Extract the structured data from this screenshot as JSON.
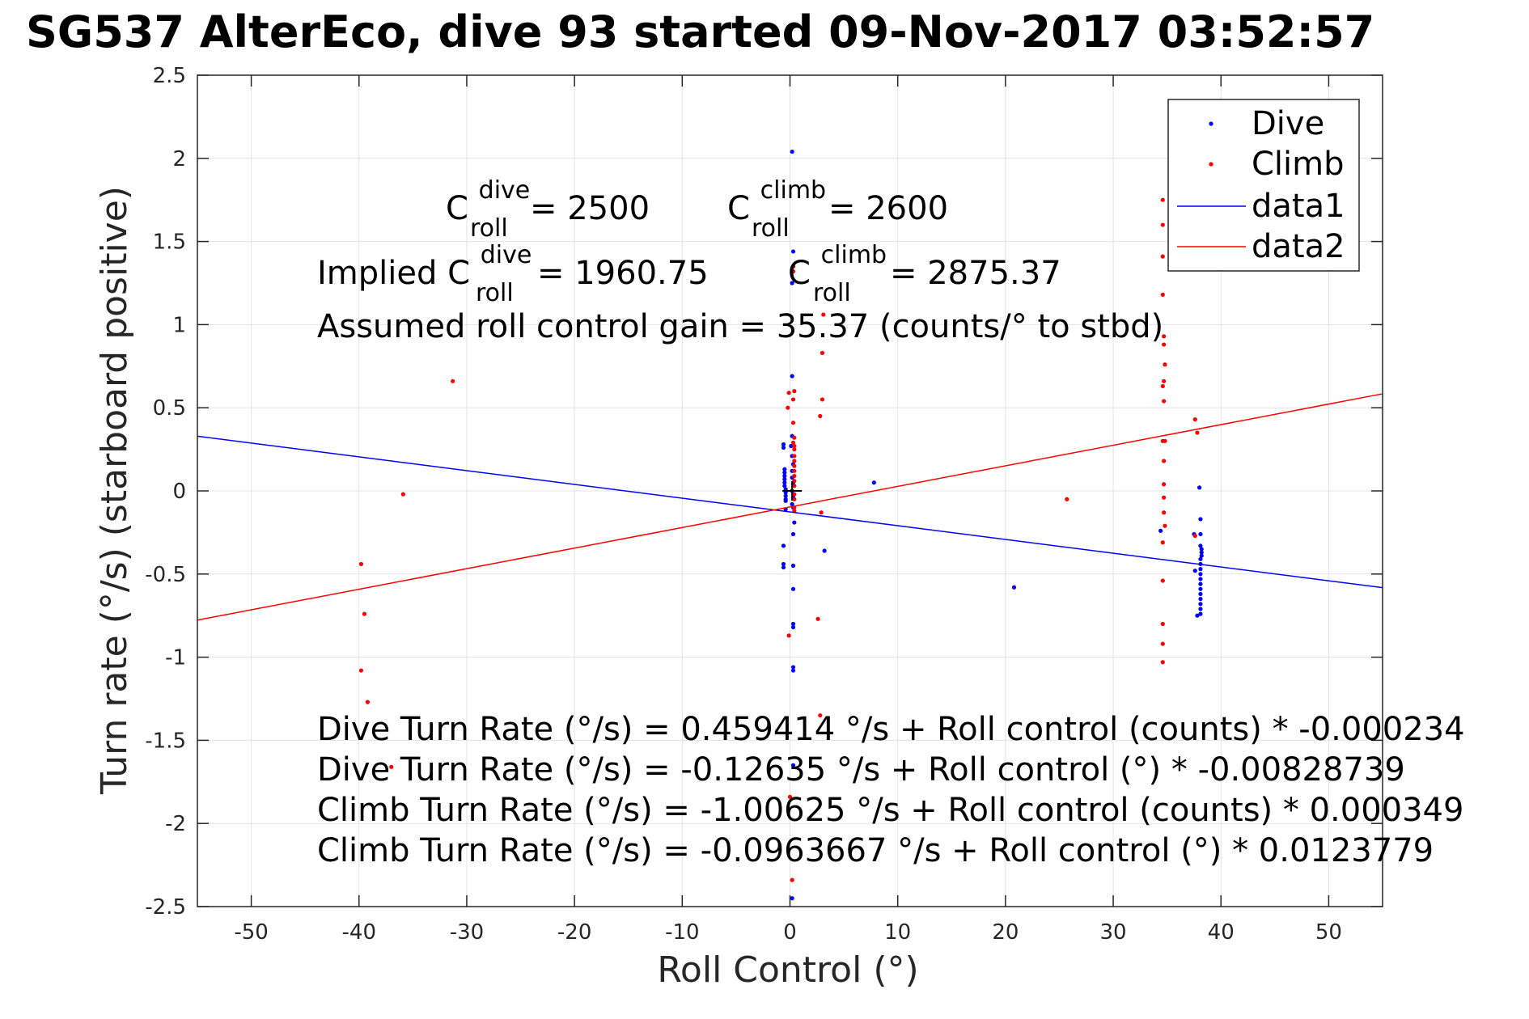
{
  "chart_data": {
    "type": "scatter",
    "title": "SG537 AlterEco, dive 93 started 09-Nov-2017 03:52:57",
    "xlabel": "Roll Control (°)",
    "ylabel": "Turn rate (°/s) (starboard positive)",
    "xlim": [
      -55,
      55
    ],
    "ylim": [
      -2.5,
      2.5
    ],
    "xticks": [
      -50,
      -40,
      -30,
      -20,
      -10,
      0,
      10,
      20,
      30,
      40,
      50
    ],
    "yticks": [
      -2.5,
      -2,
      -1.5,
      -1,
      -0.5,
      0,
      0.5,
      1,
      1.5,
      2,
      2.5
    ],
    "xtick_labels": [
      "-50",
      "-40",
      "-30",
      "-20",
      "-10",
      "0",
      "10",
      "20",
      "30",
      "40",
      "50"
    ],
    "ytick_labels": [
      "-2.5",
      "-2",
      "-1.5",
      "-1",
      "-0.5",
      "0",
      "0.5",
      "1",
      "1.5",
      "2",
      "2.5"
    ],
    "grid": true,
    "legend_position": "top-right",
    "colors": {
      "dive": "#0000ff",
      "climb": "#ff0000",
      "axis": "#262626",
      "grid": "#e3e3e3"
    },
    "series": [
      {
        "name": "Dive",
        "kind": "points",
        "points": [
          [
            0.2,
            2.04
          ],
          [
            0.3,
            1.44
          ],
          [
            0.2,
            1.25
          ],
          [
            0.2,
            0.69
          ],
          [
            0.2,
            0.33
          ],
          [
            0.1,
            0.27
          ],
          [
            0.2,
            0.21
          ],
          [
            0.3,
            0.16
          ],
          [
            0.2,
            0.12
          ],
          [
            0.2,
            0.08
          ],
          [
            0.3,
            0.04
          ],
          [
            0.2,
            0.0
          ],
          [
            0.3,
            -0.04
          ],
          [
            0.2,
            -0.08
          ],
          [
            0.3,
            -0.1
          ],
          [
            0.4,
            -0.19
          ],
          [
            0.3,
            -0.26
          ],
          [
            0.3,
            -0.45
          ],
          [
            0.3,
            -0.59
          ],
          [
            0.3,
            -0.8
          ],
          [
            0.3,
            -0.82
          ],
          [
            0.3,
            -1.06
          ],
          [
            0.3,
            -1.08
          ],
          [
            0.3,
            -1.65
          ],
          [
            0.2,
            -2.45
          ],
          [
            -0.6,
            0.28
          ],
          [
            -0.6,
            0.26
          ],
          [
            -0.5,
            0.13
          ],
          [
            -0.5,
            0.11
          ],
          [
            -0.5,
            0.09
          ],
          [
            -0.5,
            0.07
          ],
          [
            -0.5,
            0.05
          ],
          [
            -0.5,
            0.03
          ],
          [
            -0.4,
            0.01
          ],
          [
            -0.4,
            -0.01
          ],
          [
            -0.4,
            -0.03
          ],
          [
            -0.4,
            -0.05
          ],
          [
            -0.4,
            -0.06
          ],
          [
            -0.4,
            -0.11
          ],
          [
            -0.6,
            -0.33
          ],
          [
            -0.6,
            -0.44
          ],
          [
            -0.6,
            -0.46
          ],
          [
            3.2,
            -0.36
          ],
          [
            7.8,
            0.05
          ],
          [
            20.8,
            -0.58
          ],
          [
            34.4,
            -0.24
          ],
          [
            37.5,
            -0.26
          ],
          [
            37.6,
            -0.48
          ],
          [
            37.8,
            -0.75
          ],
          [
            38.0,
            0.02
          ],
          [
            38.1,
            -0.17
          ],
          [
            38.1,
            -0.26
          ],
          [
            38.1,
            -0.33
          ],
          [
            38.2,
            -0.35
          ],
          [
            38.2,
            -0.37
          ],
          [
            38.2,
            -0.39
          ],
          [
            38.1,
            -0.41
          ],
          [
            38.1,
            -0.44
          ],
          [
            38.1,
            -0.47
          ],
          [
            38.1,
            -0.5
          ],
          [
            38.1,
            -0.53
          ],
          [
            38.1,
            -0.56
          ],
          [
            38.1,
            -0.59
          ],
          [
            38.1,
            -0.62
          ],
          [
            38.1,
            -0.65
          ],
          [
            38.1,
            -0.68
          ],
          [
            38.1,
            -0.71
          ],
          [
            38.1,
            -0.74
          ]
        ]
      },
      {
        "name": "Climb",
        "kind": "points",
        "points": [
          [
            -39.8,
            -0.44
          ],
          [
            -39.8,
            -1.08
          ],
          [
            -39.5,
            -0.74
          ],
          [
            -39.2,
            -1.27
          ],
          [
            -37.0,
            -1.66
          ],
          [
            -35.9,
            -0.02
          ],
          [
            -31.3,
            0.66
          ],
          [
            -0.1,
            0.59
          ],
          [
            -0.2,
            0.5
          ],
          [
            -0.1,
            -0.87
          ],
          [
            0.0,
            -1.84
          ],
          [
            0.2,
            -2.34
          ],
          [
            0.3,
            1.35
          ],
          [
            0.3,
            1.32
          ],
          [
            0.3,
            0.55
          ],
          [
            0.4,
            0.6
          ],
          [
            0.3,
            0.41
          ],
          [
            0.4,
            0.32
          ],
          [
            0.3,
            0.29
          ],
          [
            0.4,
            0.27
          ],
          [
            0.4,
            0.25
          ],
          [
            0.4,
            0.21
          ],
          [
            0.4,
            0.18
          ],
          [
            0.4,
            0.15
          ],
          [
            0.4,
            0.12
          ],
          [
            0.4,
            0.09
          ],
          [
            0.4,
            0.06
          ],
          [
            0.4,
            0.03
          ],
          [
            0.4,
            -0.02
          ],
          [
            0.4,
            -0.05
          ],
          [
            0.4,
            -0.1
          ],
          [
            0.4,
            -0.12
          ],
          [
            2.6,
            -0.77
          ],
          [
            2.8,
            -1.35
          ],
          [
            2.8,
            0.45
          ],
          [
            3.0,
            0.55
          ],
          [
            3.0,
            0.83
          ],
          [
            3.1,
            1.06
          ],
          [
            2.9,
            -0.13
          ],
          [
            25.7,
            -0.05
          ],
          [
            34.6,
            1.75
          ],
          [
            34.6,
            1.6
          ],
          [
            34.6,
            1.41
          ],
          [
            34.6,
            1.18
          ],
          [
            34.7,
            0.93
          ],
          [
            34.7,
            0.88
          ],
          [
            34.8,
            0.76
          ],
          [
            34.7,
            0.66
          ],
          [
            34.6,
            0.63
          ],
          [
            34.7,
            0.54
          ],
          [
            34.6,
            0.3
          ],
          [
            34.8,
            0.3
          ],
          [
            34.7,
            0.18
          ],
          [
            34.7,
            0.04
          ],
          [
            34.7,
            -0.04
          ],
          [
            34.7,
            -0.13
          ],
          [
            34.8,
            -0.21
          ],
          [
            34.6,
            -0.31
          ],
          [
            34.6,
            -0.54
          ],
          [
            34.6,
            -0.8
          ],
          [
            34.6,
            -0.92
          ],
          [
            34.6,
            -1.03
          ],
          [
            37.6,
            0.43
          ],
          [
            37.8,
            0.35
          ],
          [
            37.6,
            -0.27
          ]
        ]
      },
      {
        "name": "data1",
        "kind": "line",
        "x": [
          -55,
          55
        ],
        "y": [
          0.329,
          -0.582
        ]
      },
      {
        "name": "data2",
        "kind": "line",
        "x": [
          -55,
          55
        ],
        "y": [
          -0.777,
          0.584
        ]
      }
    ],
    "marker": {
      "x": 0.2,
      "y": 0.0
    },
    "annotations": {
      "c_dive_label": "C",
      "c_dive_sup": "dive",
      "c_dive_sub": "roll",
      "c_dive_value": " = 2500",
      "c_climb_label": "C",
      "c_climb_sup": "climb",
      "c_climb_sub": "roll",
      "c_climb_value": " = 2600",
      "implied_prefix": "Implied C",
      "implied_dive_sup": "dive",
      "implied_dive_sub": "roll",
      "implied_dive_value": " = 1960.75",
      "implied_climb_label": "C",
      "implied_climb_sup": "climb",
      "implied_climb_sub": "roll",
      "implied_climb_value": " = 2875.37",
      "gain": "Assumed roll control gain = 35.37 (counts/° to stbd)",
      "fit1": "Dive Turn Rate (°/s) = 0.459414 °/s + Roll control (counts) * -0.000234",
      "fit2": "Dive Turn Rate (°/s) = -0.12635 °/s + Roll control (°) * -0.00828739",
      "fit3": "Climb Turn Rate (°/s) = -1.00625 °/s + Roll control (counts) * 0.000349",
      "fit4": "Climb Turn Rate (°/s) = -0.0963667 °/s + Roll control (°) * 0.0123779"
    }
  }
}
